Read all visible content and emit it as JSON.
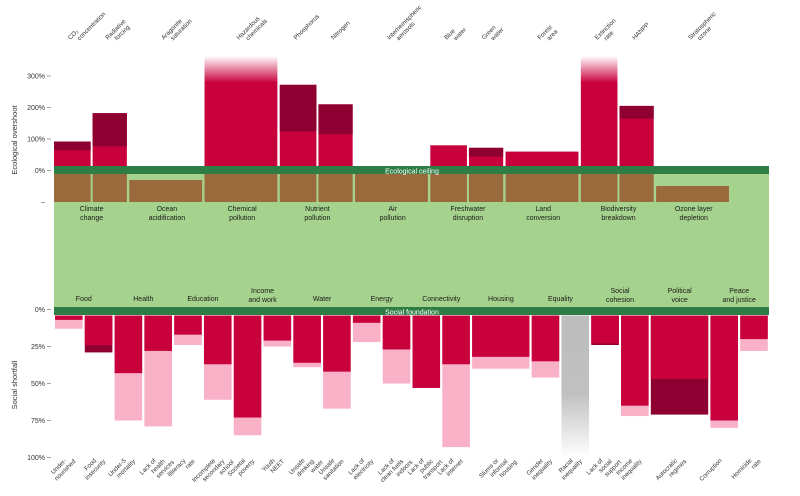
{
  "chart_data": [
    {
      "type": "bar",
      "title": "Ecological overshoot",
      "ylabel": "Ecological overshoot",
      "ylim": [
        0,
        300
      ],
      "yticks": [
        {
          "value": 300,
          "label": "300%"
        },
        {
          "value": 200,
          "label": "200%"
        },
        {
          "value": 100,
          "label": "100%"
        },
        {
          "value": 0,
          "label": "0%"
        }
      ],
      "ylabel_below_ceiling": "–",
      "ceiling_label": "Ecological ceiling",
      "groups": [
        {
          "name": "Climate change",
          "line1": "Climate",
          "line2": "change",
          "indicators": [
            {
              "label": "CO₂ concentration",
              "l1": "CO₂",
              "l2": "concentration",
              "total": 92,
              "dark_part": 28,
              "exceeds_axis": false
            },
            {
              "label": "Radiative forcing",
              "l1": "Radiative",
              "l2": "forcing",
              "total": 182,
              "dark_part": 105,
              "exceeds_axis": false
            }
          ]
        },
        {
          "name": "Ocean acidification",
          "line1": "Ocean",
          "line2": "acidification",
          "indicators": [
            {
              "label": "Aragonite saturation",
              "l1": "Aragonite",
              "l2": "saturation",
              "total": 0,
              "dark_part": 0,
              "exceeds_axis": false
            }
          ]
        },
        {
          "name": "Chemical pollution",
          "line1": "Chemical",
          "line2": "pollution",
          "indicators": [
            {
              "label": "Hazardous chemicals",
              "l1": "Hazardous",
              "l2": "chemicals",
              "total": 360,
              "dark_part": 0,
              "exceeds_axis": true
            }
          ]
        },
        {
          "name": "Nutrient pollution",
          "line1": "Nutrient",
          "line2": "pollution",
          "indicators": [
            {
              "label": "Phosphorus",
              "l1": "Phosphorus",
              "l2": "",
              "total": 272,
              "dark_part": 148,
              "exceeds_axis": false
            },
            {
              "label": "Nitrogen",
              "l1": "Nitrogen",
              "l2": "",
              "total": 210,
              "dark_part": 95,
              "exceeds_axis": false
            }
          ]
        },
        {
          "name": "Air pollution",
          "line1": "Air",
          "line2": "pollution",
          "indicators": [
            {
              "label": "Interhemispheric aerosols",
              "l1": "Interhemispheric",
              "l2": "aerosols",
              "total": 0,
              "dark_part": 0,
              "exceeds_axis": false
            }
          ]
        },
        {
          "name": "Freshwater disruption",
          "line1": "Freshwater",
          "line2": "disruption",
          "indicators": [
            {
              "label": "Blue water",
              "l1": "Blue",
              "l2": "water",
              "total": 80,
              "dark_part": 0,
              "exceeds_axis": false
            },
            {
              "label": "Green water",
              "l1": "Green",
              "l2": "water",
              "total": 72,
              "dark_part": 28,
              "exceeds_axis": false
            }
          ]
        },
        {
          "name": "Land conversion",
          "line1": "Land",
          "line2": "conversion",
          "indicators": [
            {
              "label": "Forest area",
              "l1": "Forest",
              "l2": "area",
              "total": 60,
              "dark_part": 0,
              "exceeds_axis": false
            }
          ]
        },
        {
          "name": "Biodiversity breakdown",
          "line1": "Biodiversity",
          "line2": "breakdown",
          "indicators": [
            {
              "label": "Extinction rate",
              "l1": "Extinction",
              "l2": "rate",
              "total": 360,
              "dark_part": 0,
              "exceeds_axis": true
            },
            {
              "label": "HANPP",
              "l1": "HANPP",
              "l2": "",
              "total": 205,
              "dark_part": 40,
              "exceeds_axis": false
            }
          ]
        },
        {
          "name": "Ozone layer depletion",
          "line1": "Ozone layer",
          "line2": "depletion",
          "indicators": [
            {
              "label": "Stratospheric ozone",
              "l1": "Stratospheric",
              "l2": "ozone",
              "total": 0,
              "dark_part": 0,
              "exceeds_axis": false
            }
          ]
        }
      ]
    },
    {
      "type": "bar",
      "title": "Social shortfall",
      "ylabel": "Social shortfall",
      "ylim": [
        0,
        100
      ],
      "yticks": [
        {
          "value": 0,
          "label": "0%"
        },
        {
          "value": 25,
          "label": "25%"
        },
        {
          "value": 50,
          "label": "50%"
        },
        {
          "value": 75,
          "label": "75%"
        },
        {
          "value": 100,
          "label": "100%"
        }
      ],
      "foundation_label": "Social foundation",
      "groups": [
        {
          "name": "Food",
          "line1": "Food",
          "line2": "",
          "indicators": [
            {
              "label": "Undernourished",
              "l1": "Under-",
              "l2": "nourished",
              "primary": 7,
              "light": 13,
              "dark": 0,
              "gray": 0
            },
            {
              "label": "Food insecurity",
              "l1": "Food",
              "l2": "insecurity",
              "primary": 24,
              "light": 0,
              "dark": 29,
              "gray": 0
            }
          ]
        },
        {
          "name": "Health",
          "line1": "Health",
          "line2": "",
          "indicators": [
            {
              "label": "Under-5 mortality",
              "l1": "Under-5",
              "l2": "mortality",
              "primary": 43,
              "light": 75,
              "dark": 0,
              "gray": 0
            },
            {
              "label": "Lack of health services",
              "l1": "Lack of",
              "l2": "health",
              "l3": "services",
              "primary": 28,
              "light": 79,
              "dark": 0,
              "gray": 0
            }
          ]
        },
        {
          "name": "Education",
          "line1": "Education",
          "line2": "",
          "indicators": [
            {
              "label": "Illiteracy rate",
              "l1": "Illiteracy",
              "l2": "rate",
              "primary": 17,
              "light": 24,
              "dark": 0,
              "gray": 0
            },
            {
              "label": "Incomplete secondary school",
              "l1": "Incomplete",
              "l2": "secondary",
              "l3": "school",
              "primary": 37,
              "light": 61,
              "dark": 0,
              "gray": 0
            }
          ]
        },
        {
          "name": "Income and work",
          "line1": "Income",
          "line2": "and work",
          "indicators": [
            {
              "label": "Societal poverty",
              "l1": "Societal",
              "l2": "poverty",
              "primary": 73,
              "light": 85,
              "dark": 0,
              "gray": 0
            },
            {
              "label": "Youth NEET",
              "l1": "Youth",
              "l2": "NEET",
              "primary": 21,
              "light": 25,
              "dark": 0,
              "gray": 0
            }
          ]
        },
        {
          "name": "Water",
          "line1": "Water",
          "line2": "",
          "indicators": [
            {
              "label": "Unsafe drinking water",
              "l1": "Unsafe",
              "l2": "drinking",
              "l3": "water",
              "primary": 36,
              "light": 39,
              "dark": 0,
              "gray": 0
            },
            {
              "label": "Unsafe sanitation",
              "l1": "Unsafe",
              "l2": "sanitation",
              "primary": 42,
              "light": 67,
              "dark": 0,
              "gray": 0
            }
          ]
        },
        {
          "name": "Energy",
          "line1": "Energy",
          "line2": "",
          "indicators": [
            {
              "label": "Lack of electricity",
              "l1": "Lack of",
              "l2": "electricity",
              "primary": 9,
              "light": 22,
              "dark": 0,
              "gray": 0
            },
            {
              "label": "Lack of clean fuels indoors",
              "l1": "Lack of",
              "l2": "clean fuels",
              "l3": "indoors",
              "primary": 27,
              "light": 50,
              "dark": 0,
              "gray": 0
            }
          ]
        },
        {
          "name": "Connectivity",
          "line1": "Connectivity",
          "line2": "",
          "indicators": [
            {
              "label": "Lack of public transport",
              "l1": "Lack of",
              "l2": "public",
              "l3": "transport",
              "primary": 53,
              "light": 0,
              "dark": 0,
              "gray": 0
            },
            {
              "label": "Lack of internet",
              "l1": "Lack of",
              "l2": "internet",
              "primary": 37,
              "light": 93,
              "dark": 0,
              "gray": 0
            }
          ]
        },
        {
          "name": "Housing",
          "line1": "Housing",
          "line2": "",
          "indicators": [
            {
              "label": "Slums or informal housing",
              "l1": "Slums or",
              "l2": "informal",
              "l3": "housing",
              "primary": 32,
              "light": 40,
              "dark": 0,
              "gray": 0
            }
          ]
        },
        {
          "name": "Equality",
          "line1": "Equality",
          "line2": "",
          "indicators": [
            {
              "label": "Gender inequality",
              "l1": "Gender",
              "l2": "inequality",
              "primary": 35,
              "light": 46,
              "dark": 0,
              "gray": 0
            },
            {
              "label": "Racial inequality",
              "l1": "Racial",
              "l2": "inequality",
              "primary": 0,
              "light": 0,
              "dark": 0,
              "gray": 100
            }
          ]
        },
        {
          "name": "Social cohesion",
          "line1": "Social",
          "line2": "cohesion",
          "indicators": [
            {
              "label": "Lack of social support",
              "l1": "Lack of",
              "l2": "social",
              "l3": "support",
              "primary": 23,
              "light": 0,
              "dark": 24,
              "gray": 0
            },
            {
              "label": "Income inequality",
              "l1": "Income",
              "l2": "inequality",
              "primary": 65,
              "light": 72,
              "dark": 0,
              "gray": 0
            }
          ]
        },
        {
          "name": "Political voice",
          "line1": "Political",
          "line2": "voice",
          "indicators": [
            {
              "label": "Autocratic regimes",
              "l1": "Autocratic",
              "l2": "regimes",
              "primary": 47,
              "light": 0,
              "dark": 71,
              "gray": 0
            }
          ]
        },
        {
          "name": "Peace and justice",
          "line1": "Peace",
          "line2": "and justice",
          "indicators": [
            {
              "label": "Corruption",
              "l1": "Corruption",
              "l2": "",
              "primary": 75,
              "light": 80,
              "dark": 0,
              "gray": 0
            },
            {
              "label": "Homicide rate",
              "l1": "Homicide",
              "l2": "rate",
              "primary": 20,
              "light": 28,
              "dark": 0,
              "gray": 0
            }
          ]
        }
      ]
    }
  ],
  "colors": {
    "primary": "#c8003c",
    "dark": "#8f0032",
    "light": "#f9b1c8",
    "gray": "#bdbdbd",
    "band_green": "#2e7d44",
    "brown": "#9b6a3c",
    "safe_space": "#a5d38d",
    "text": "#333333"
  }
}
